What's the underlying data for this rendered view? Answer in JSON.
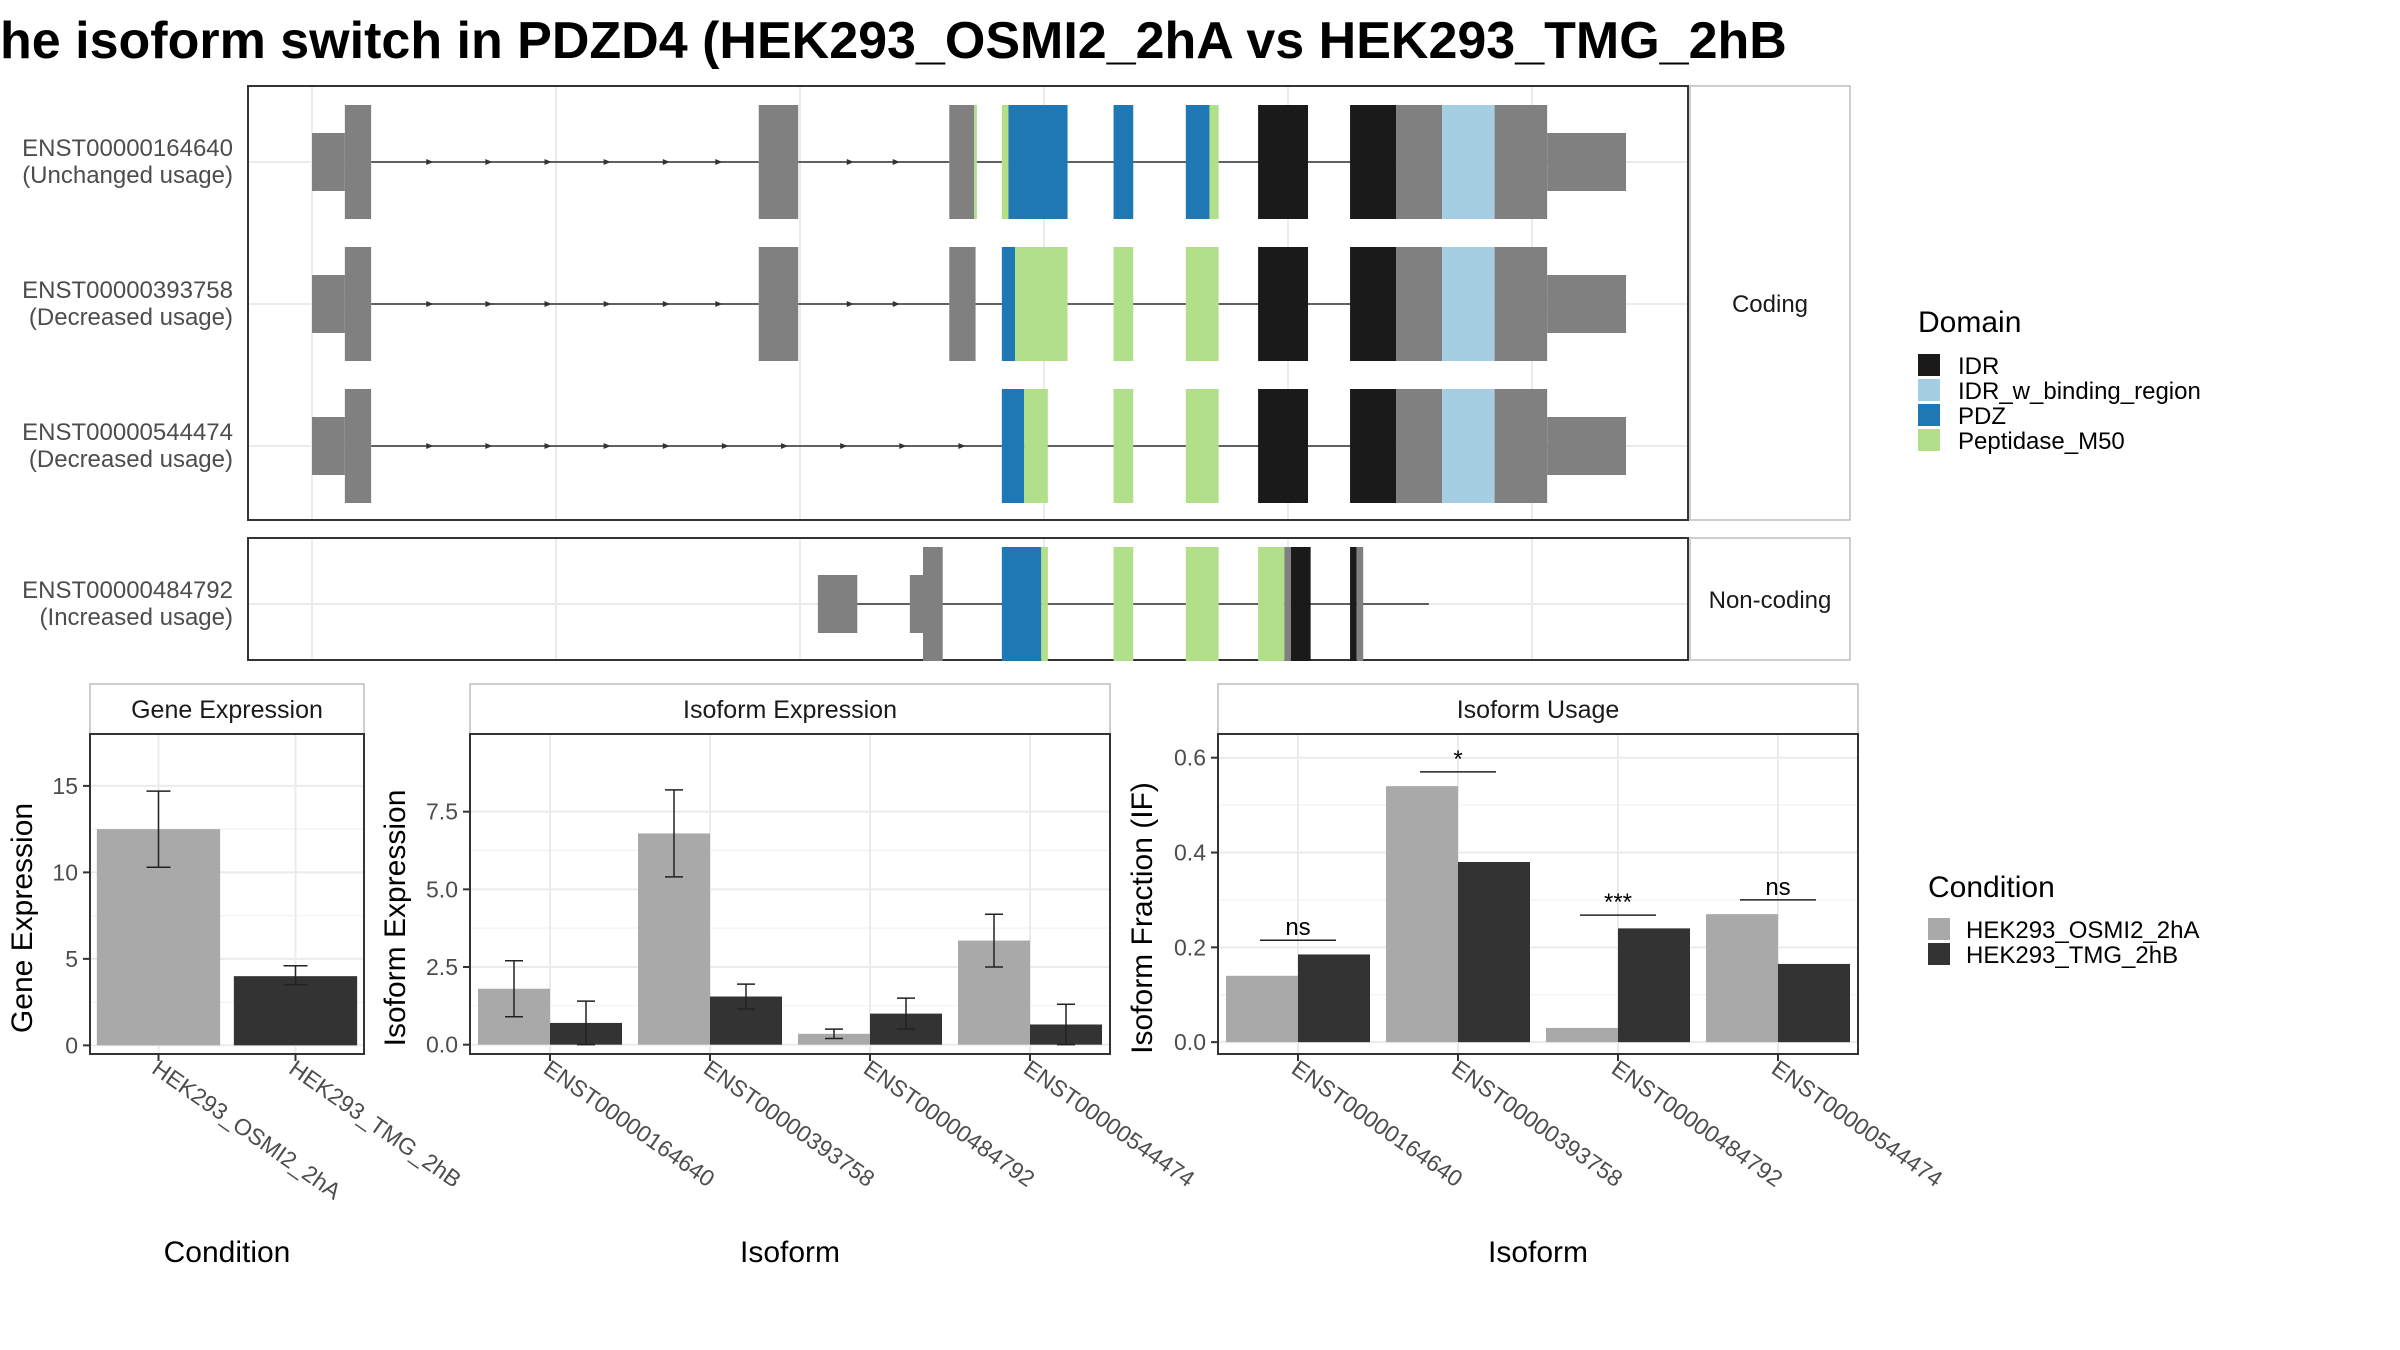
{
  "page": {
    "title": "he isoform switch in PDZD4 (HEK293_OSMI2_2hA vs HEK293_TMG_2hB"
  },
  "colors": {
    "exon": "#808080",
    "idr": "#1a1a1a",
    "idr_binding": "#a6cee3",
    "pdz": "#1f78b4",
    "peptidase": "#b2df8a",
    "cond_a": "#a9a9a9",
    "cond_b": "#333333",
    "strip_bg": "#ffffff",
    "grid": "#ebebeb"
  },
  "chart_data": [
    {
      "type": "gene-structure",
      "x_range": [
        0,
        100
      ],
      "facets": [
        {
          "label": "Coding",
          "isoforms": [
            0,
            1,
            2
          ]
        },
        {
          "label": "Non-coding",
          "isoforms": [
            3
          ]
        }
      ],
      "isoforms": [
        {
          "id": "ENST00000164640",
          "usage": "(Unchanged usage)",
          "introns": [
            [
              4.5,
              34
            ],
            [
              37,
              48.5
            ],
            [
              50.5,
              57.5
            ]
          ],
          "arrows": [
            9,
            13.5,
            18,
            22.5,
            27,
            31,
            41,
            44.5
          ],
          "tail_line": [
            57.5,
            100
          ],
          "segments": [
            {
              "start": 0,
              "end": 2.5,
              "type": "utr"
            },
            {
              "start": 2.5,
              "end": 4.5,
              "type": "cds"
            },
            {
              "start": 34,
              "end": 37,
              "type": "cds"
            },
            {
              "start": 48.5,
              "end": 50.4,
              "type": "cds"
            },
            {
              "start": 50.4,
              "end": 50.6,
              "type": "peptidase"
            },
            {
              "start": 52.5,
              "end": 53,
              "type": "peptidase"
            },
            {
              "start": 53,
              "end": 57.5,
              "type": "pdz"
            },
            {
              "start": 61,
              "end": 62.5,
              "type": "pdz"
            },
            {
              "start": 66.5,
              "end": 68.3,
              "type": "pdz"
            },
            {
              "start": 68.3,
              "end": 69,
              "type": "peptidase"
            },
            {
              "start": 72,
              "end": 75.8,
              "type": "idr"
            },
            {
              "start": 79,
              "end": 82.5,
              "type": "idr"
            },
            {
              "start": 82.5,
              "end": 86,
              "type": "cds"
            },
            {
              "start": 86,
              "end": 90,
              "type": "idr_binding"
            },
            {
              "start": 90,
              "end": 94,
              "type": "cds"
            },
            {
              "start": 94,
              "end": 100,
              "type": "utr"
            }
          ]
        },
        {
          "id": "ENST00000393758",
          "usage": "(Decreased usage)",
          "introns": [
            [
              4.5,
              34
            ],
            [
              37,
              48.5
            ],
            [
              50.5,
              57.5
            ]
          ],
          "arrows": [
            9,
            13.5,
            18,
            22.5,
            27,
            31,
            41,
            44.5
          ],
          "tail_line": [
            57.5,
            100
          ],
          "segments": [
            {
              "start": 0,
              "end": 2.5,
              "type": "utr"
            },
            {
              "start": 2.5,
              "end": 4.5,
              "type": "cds"
            },
            {
              "start": 34,
              "end": 37,
              "type": "cds"
            },
            {
              "start": 48.5,
              "end": 50.5,
              "type": "cds"
            },
            {
              "start": 52.5,
              "end": 53.5,
              "type": "pdz"
            },
            {
              "start": 53.5,
              "end": 57.5,
              "type": "peptidase"
            },
            {
              "start": 61,
              "end": 62.5,
              "type": "peptidase"
            },
            {
              "start": 66.5,
              "end": 69,
              "type": "peptidase"
            },
            {
              "start": 72,
              "end": 75.8,
              "type": "idr"
            },
            {
              "start": 79,
              "end": 82.5,
              "type": "idr"
            },
            {
              "start": 82.5,
              "end": 86,
              "type": "cds"
            },
            {
              "start": 86,
              "end": 90,
              "type": "idr_binding"
            },
            {
              "start": 90,
              "end": 94,
              "type": "cds"
            },
            {
              "start": 94,
              "end": 100,
              "type": "utr"
            }
          ]
        },
        {
          "id": "ENST00000544474",
          "usage": "(Decreased usage)",
          "introns": [
            [
              4.5,
              52.5
            ]
          ],
          "arrows": [
            9,
            13.5,
            18,
            22.5,
            27,
            31.5,
            36,
            40.5,
            45,
            49.5
          ],
          "tail_line": [
            52.5,
            100
          ],
          "segments": [
            {
              "start": 0,
              "end": 2.5,
              "type": "utr"
            },
            {
              "start": 2.5,
              "end": 4.5,
              "type": "cds"
            },
            {
              "start": 52.5,
              "end": 54.2,
              "type": "pdz"
            },
            {
              "start": 54.2,
              "end": 56,
              "type": "peptidase"
            },
            {
              "start": 61,
              "end": 62.5,
              "type": "peptidase"
            },
            {
              "start": 66.5,
              "end": 69,
              "type": "peptidase"
            },
            {
              "start": 72,
              "end": 75.8,
              "type": "idr"
            },
            {
              "start": 79,
              "end": 82.5,
              "type": "idr"
            },
            {
              "start": 82.5,
              "end": 86,
              "type": "cds"
            },
            {
              "start": 86,
              "end": 90,
              "type": "idr_binding"
            },
            {
              "start": 90,
              "end": 94,
              "type": "cds"
            },
            {
              "start": 94,
              "end": 100,
              "type": "utr"
            }
          ]
        },
        {
          "id": "ENST00000484792",
          "usage": "(Increased usage)",
          "introns": [
            [
              38.5,
              45.5
            ]
          ],
          "arrows": [],
          "tail_line": [
            45.5,
            85
          ],
          "segments": [
            {
              "start": 38.5,
              "end": 41.5,
              "type": "utr"
            },
            {
              "start": 45.5,
              "end": 46.5,
              "type": "utr"
            },
            {
              "start": 46.5,
              "end": 48,
              "type": "cds"
            },
            {
              "start": 52.5,
              "end": 55.5,
              "type": "pdz"
            },
            {
              "start": 55.5,
              "end": 56,
              "type": "peptidase"
            },
            {
              "start": 61,
              "end": 62.5,
              "type": "peptidase"
            },
            {
              "start": 66.5,
              "end": 69,
              "type": "peptidase"
            },
            {
              "start": 72,
              "end": 74,
              "type": "peptidase"
            },
            {
              "start": 74,
              "end": 74.5,
              "type": "cds"
            },
            {
              "start": 74.5,
              "end": 76,
              "type": "idr"
            },
            {
              "start": 79,
              "end": 79.5,
              "type": "idr"
            },
            {
              "start": 79.5,
              "end": 80,
              "type": "cds"
            }
          ]
        }
      ],
      "legend": {
        "title": "Domain",
        "items": [
          "IDR",
          "IDR_w_binding_region",
          "PDZ",
          "Peptidase_M50"
        ]
      }
    },
    {
      "type": "bar",
      "strip": "Gene Expression",
      "xlabel": "Condition",
      "ylabel": "Gene Expression",
      "ylim": [
        -0.5,
        18
      ],
      "yticks": [
        0,
        5,
        10,
        15
      ],
      "categories": [
        "HEK293_OSMI2_2hA",
        "HEK293_TMG_2hB"
      ],
      "values": [
        12.5,
        4.0
      ],
      "errors": [
        [
          10.3,
          14.7
        ],
        [
          3.5,
          4.6
        ]
      ]
    },
    {
      "type": "bar",
      "strip": "Isoform Expression",
      "xlabel": "Isoform",
      "ylabel": "Isoform Expression",
      "ylim": [
        -0.3,
        10
      ],
      "yticks": [
        "0.0",
        "2.5",
        "5.0",
        "7.5"
      ],
      "categories": [
        "ENST00000164640",
        "ENST00000393758",
        "ENST00000484792",
        "ENST00000544474"
      ],
      "series": [
        {
          "name": "HEK293_OSMI2_2hA",
          "values": [
            1.8,
            6.8,
            0.35,
            3.35
          ],
          "errors": [
            [
              0.9,
              2.7
            ],
            [
              5.4,
              8.2
            ],
            [
              0.2,
              0.5
            ],
            [
              2.5,
              4.2
            ]
          ]
        },
        {
          "name": "HEK293_TMG_2hB",
          "values": [
            0.7,
            1.55,
            1.0,
            0.65
          ],
          "errors": [
            [
              0.0,
              1.4
            ],
            [
              1.15,
              1.95
            ],
            [
              0.5,
              1.5
            ],
            [
              0.0,
              1.3
            ]
          ]
        }
      ]
    },
    {
      "type": "bar",
      "strip": "Isoform Usage",
      "xlabel": "Isoform",
      "ylabel": "Isoform Fraction (IF)",
      "ylim": [
        -0.025,
        0.65
      ],
      "yticks": [
        "0.0",
        "0.2",
        "0.4",
        "0.6"
      ],
      "categories": [
        "ENST00000164640",
        "ENST00000393758",
        "ENST00000484792",
        "ENST00000544474"
      ],
      "series": [
        {
          "name": "HEK293_OSMI2_2hA",
          "values": [
            0.14,
            0.54,
            0.03,
            0.27
          ]
        },
        {
          "name": "HEK293_TMG_2hB",
          "values": [
            0.185,
            0.38,
            0.24,
            0.165
          ]
        }
      ],
      "significance": [
        {
          "label": "ns",
          "y": 0.215
        },
        {
          "label": "*",
          "y": 0.57
        },
        {
          "label": "***",
          "y": 0.268
        },
        {
          "label": "ns",
          "y": 0.3
        }
      ],
      "legend": {
        "title": "Condition",
        "items": [
          "HEK293_OSMI2_2hA",
          "HEK293_TMG_2hB"
        ]
      }
    }
  ]
}
